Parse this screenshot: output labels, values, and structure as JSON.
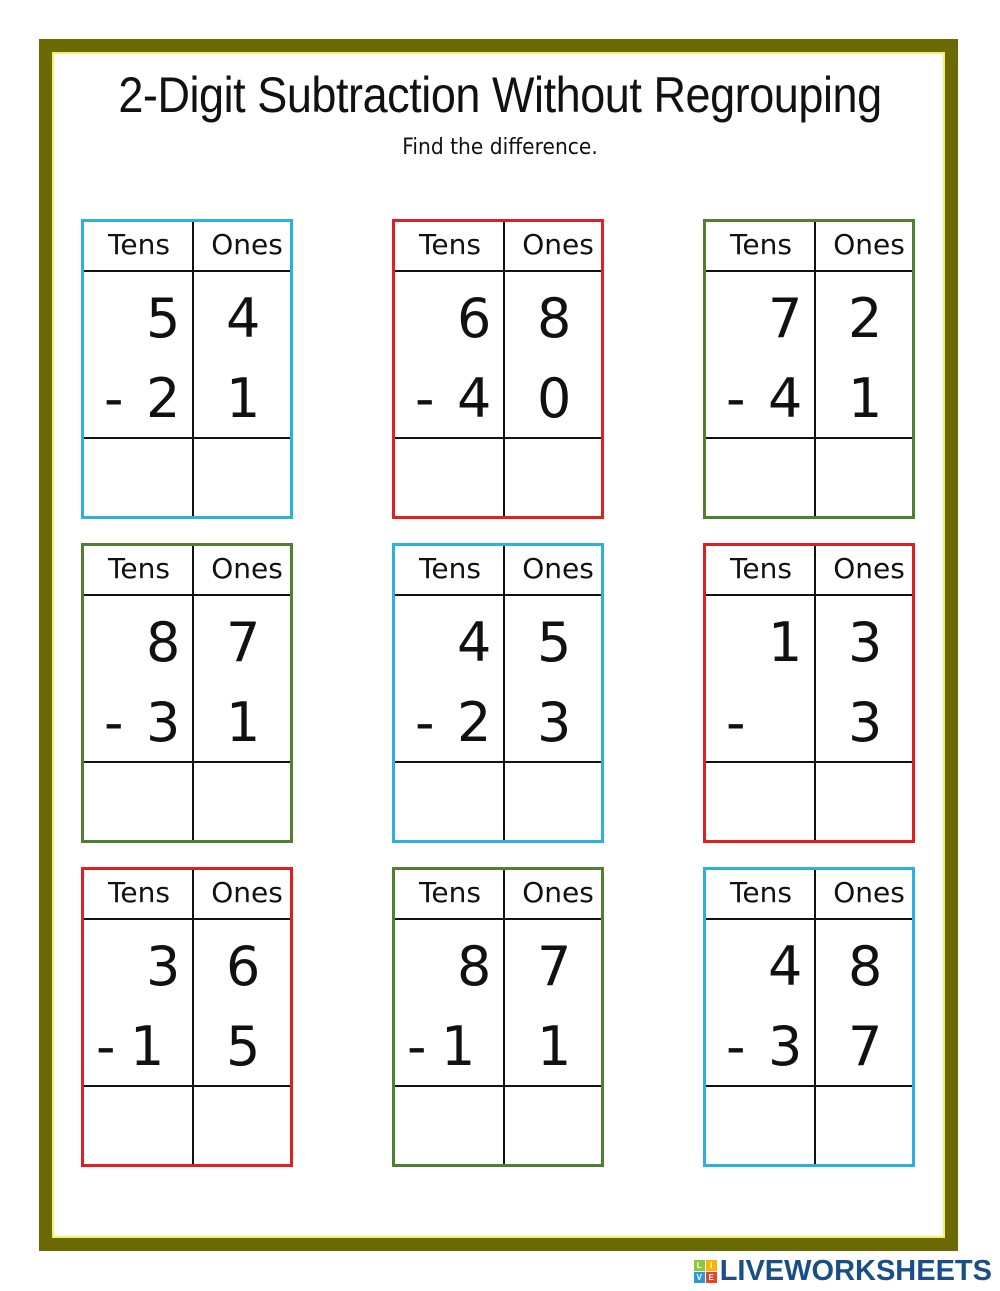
{
  "title": "2-Digit Subtraction Without Regrouping",
  "subtitle": "Find the difference.",
  "header_labels": {
    "tens": "Tens",
    "ones": "Ones"
  },
  "colors": {
    "blue": "#2bb0e0",
    "red": "#e02020",
    "green": "#4f7f2f",
    "frame": "#6b6a05"
  },
  "problems": [
    {
      "color": "blue",
      "top_tens": "5",
      "top_ones": "4",
      "minus": "-",
      "bottom_tens": "2",
      "bottom_ones": "1",
      "answer_tens": "",
      "answer_ones": ""
    },
    {
      "color": "red",
      "top_tens": "6",
      "top_ones": "8",
      "minus": "-",
      "bottom_tens": "4",
      "bottom_ones": "0",
      "answer_tens": "",
      "answer_ones": ""
    },
    {
      "color": "green",
      "top_tens": "7",
      "top_ones": "2",
      "minus": "-",
      "bottom_tens": "4",
      "bottom_ones": "1",
      "answer_tens": "",
      "answer_ones": ""
    },
    {
      "color": "green",
      "top_tens": "8",
      "top_ones": "7",
      "minus": "-",
      "bottom_tens": "3",
      "bottom_ones": "1",
      "answer_tens": "",
      "answer_ones": ""
    },
    {
      "color": "blue",
      "top_tens": "4",
      "top_ones": "5",
      "minus": "-",
      "bottom_tens": "2",
      "bottom_ones": "3",
      "answer_tens": "",
      "answer_ones": ""
    },
    {
      "color": "red",
      "top_tens": "1",
      "top_ones": "3",
      "minus": "-",
      "bottom_tens": "",
      "bottom_ones": "3",
      "answer_tens": "",
      "answer_ones": ""
    },
    {
      "color": "red",
      "top_tens": "3",
      "top_ones": "6",
      "minus": "-",
      "bottom_tens": "1",
      "bottom_ones": "5",
      "answer_tens": "",
      "answer_ones": ""
    },
    {
      "color": "green",
      "top_tens": "8",
      "top_ones": "7",
      "minus": "-",
      "bottom_tens": "1",
      "bottom_ones": "1",
      "answer_tens": "",
      "answer_ones": ""
    },
    {
      "color": "blue",
      "top_tens": "4",
      "top_ones": "8",
      "minus": "-",
      "bottom_tens": "3",
      "bottom_ones": "7",
      "answer_tens": "",
      "answer_ones": ""
    }
  ],
  "logo": {
    "blocks": [
      "L",
      "I",
      "V",
      "E"
    ],
    "text": "LIVEWORKSHEETS"
  }
}
